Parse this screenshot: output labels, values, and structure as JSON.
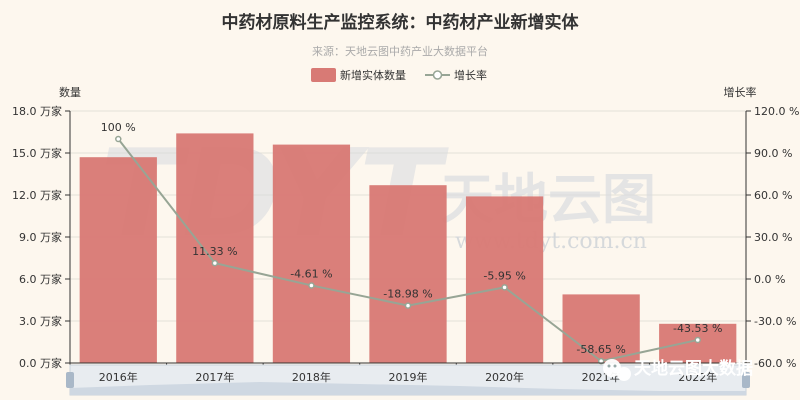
{
  "title": "中药材原料生产监控系统：中药材产业新增实体",
  "subtitle": "来源：天地云图中药产业大数据平台",
  "colors": {
    "bar": "#d87a75",
    "line": "#97a595",
    "background": "#fdf7ee"
  },
  "watermark": {
    "text": "天地云图",
    "url": "www.tdyt.com.cn"
  },
  "brand": {
    "text": "天地云图大数据",
    "icon": "wechat-icon"
  },
  "chart_data": {
    "type": "bar",
    "categories": [
      "2016年",
      "2017年",
      "2018年",
      "2019年",
      "2020年",
      "2021年",
      "2022年"
    ],
    "series": [
      {
        "name": "新增实体数量",
        "type": "bar",
        "axis": "left",
        "values": [
          14.7,
          16.4,
          15.6,
          12.7,
          11.9,
          4.9,
          2.8
        ]
      },
      {
        "name": "增长率",
        "type": "line",
        "axis": "right",
        "values": [
          100,
          11.33,
          -4.61,
          -18.98,
          -5.95,
          -58.65,
          -43.53
        ],
        "labels": [
          "100 %",
          "11.33 %",
          "-4.61 %",
          "-18.98 %",
          "-5.95 %",
          "-58.65 %",
          "-43.53 %"
        ]
      }
    ],
    "y_left": {
      "name": "数量",
      "min": 0,
      "max": 18,
      "ticks": [
        "0.0 万家",
        "3.0 万家",
        "6.0 万家",
        "9.0 万家",
        "12.0 万家",
        "15.0 万家",
        "18.0 万家"
      ]
    },
    "y_right": {
      "name": "增长率",
      "min": -60,
      "max": 120,
      "ticks": [
        "-60.0 %",
        "-30.0 %",
        "0.0 %",
        "30.0 %",
        "60.0 %",
        "90.0 %",
        "120.0 %"
      ]
    },
    "legend_position": "top-center",
    "grid": true
  }
}
